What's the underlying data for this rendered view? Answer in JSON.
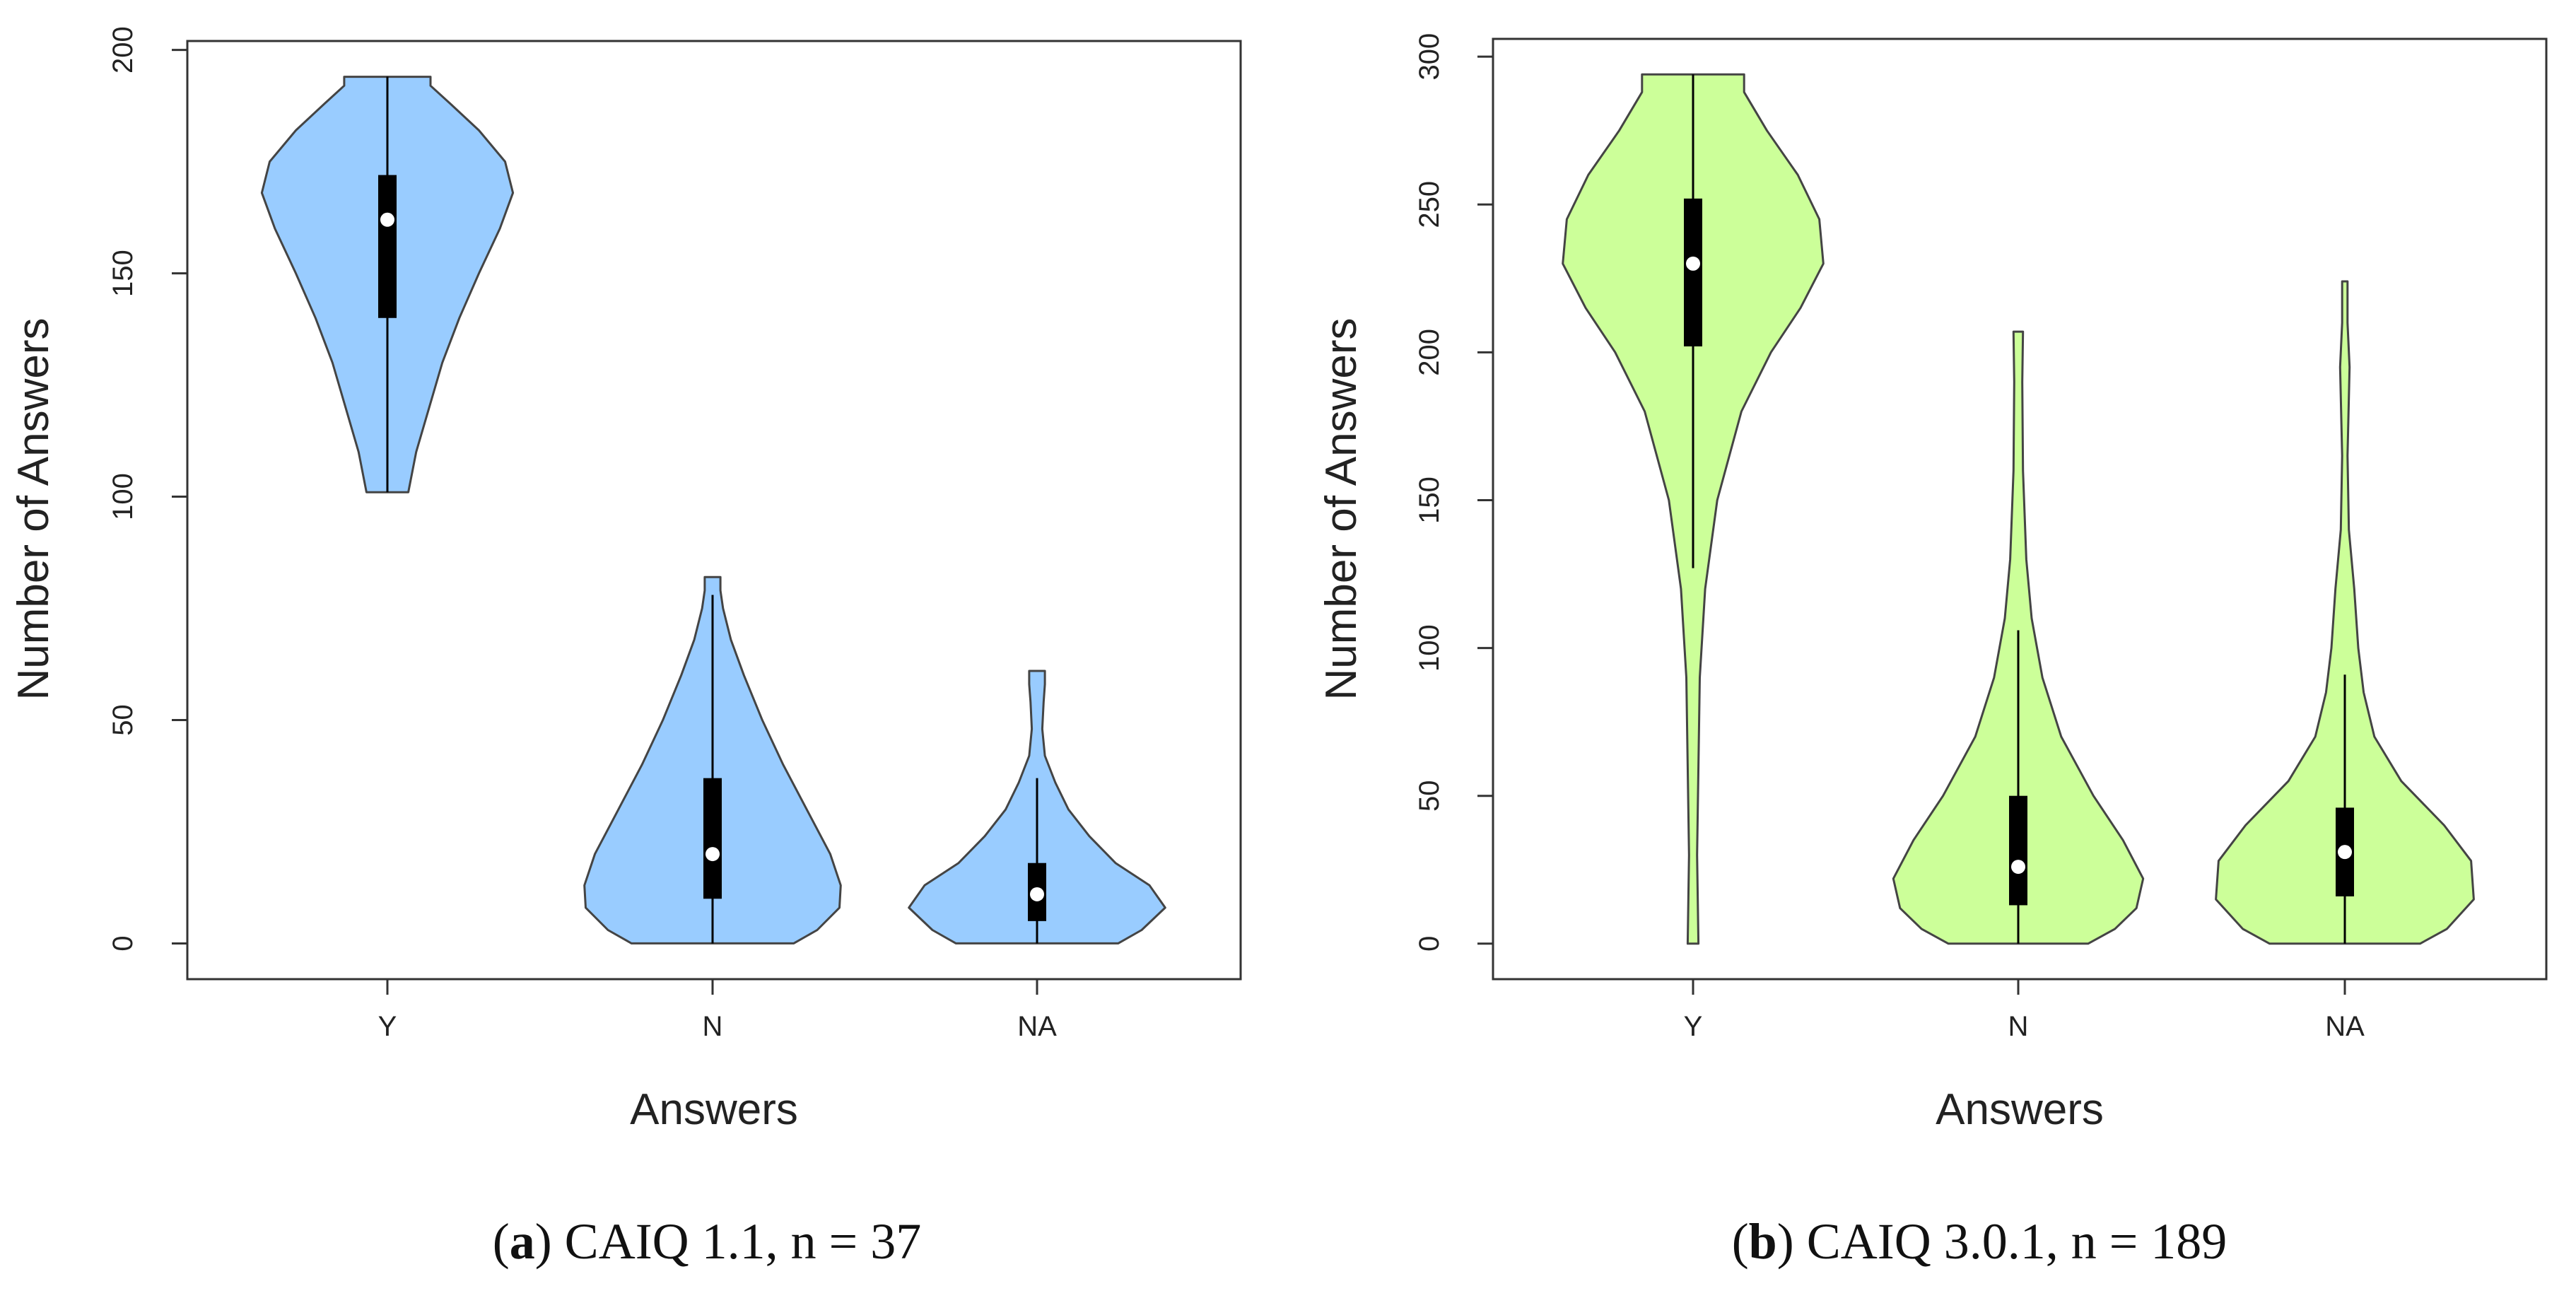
{
  "chart_data": [
    {
      "type": "violin",
      "panel_letter": "a",
      "caption_text": "CAIQ 1.1, n = 37",
      "fill_color": "#99ccff",
      "xlabel": "Answers",
      "ylabel": "Number of Answers",
      "ylim": [
        -8,
        202
      ],
      "yticks": [
        0,
        50,
        100,
        150,
        200
      ],
      "categories": [
        "Y",
        "N",
        "NA"
      ],
      "violins": [
        {
          "name": "Y",
          "min": 101,
          "q1": 140,
          "median": 162,
          "q3": 172,
          "whisker_low": 101,
          "whisker_high": 194,
          "max": 194,
          "profile": [
            [
              101,
              0.16
            ],
            [
              110,
              0.22
            ],
            [
              120,
              0.32
            ],
            [
              130,
              0.42
            ],
            [
              140,
              0.55
            ],
            [
              150,
              0.7
            ],
            [
              160,
              0.86
            ],
            [
              168,
              0.96
            ],
            [
              175,
              0.9
            ],
            [
              182,
              0.7
            ],
            [
              188,
              0.48
            ],
            [
              192,
              0.33
            ],
            [
              194,
              0.33
            ]
          ]
        },
        {
          "name": "N",
          "min": 0,
          "q1": 10,
          "median": 20,
          "q3": 37,
          "whisker_low": 0,
          "whisker_high": 78,
          "max": 82,
          "profile": [
            [
              0,
              0.62
            ],
            [
              3,
              0.8
            ],
            [
              8,
              0.97
            ],
            [
              13,
              0.98
            ],
            [
              20,
              0.9
            ],
            [
              30,
              0.72
            ],
            [
              40,
              0.54
            ],
            [
              50,
              0.38
            ],
            [
              60,
              0.24
            ],
            [
              68,
              0.14
            ],
            [
              75,
              0.08
            ],
            [
              79,
              0.06
            ],
            [
              82,
              0.06
            ]
          ]
        },
        {
          "name": "NA",
          "min": 0,
          "q1": 5,
          "median": 11,
          "q3": 18,
          "whisker_low": 0,
          "whisker_high": 37,
          "max": 61,
          "profile": [
            [
              0,
              0.62
            ],
            [
              3,
              0.8
            ],
            [
              8,
              0.98
            ],
            [
              13,
              0.86
            ],
            [
              18,
              0.6
            ],
            [
              24,
              0.4
            ],
            [
              30,
              0.24
            ],
            [
              36,
              0.14
            ],
            [
              42,
              0.06
            ],
            [
              48,
              0.04
            ],
            [
              54,
              0.05
            ],
            [
              58,
              0.06
            ],
            [
              61,
              0.06
            ]
          ]
        }
      ]
    },
    {
      "type": "violin",
      "panel_letter": "b",
      "caption_text": "CAIQ 3.0.1, n = 189",
      "fill_color": "#ccff99",
      "xlabel": "Answers",
      "ylabel": "Number of Answers",
      "ylim": [
        -12,
        306
      ],
      "yticks": [
        0,
        50,
        100,
        150,
        200,
        250,
        300
      ],
      "categories": [
        "Y",
        "N",
        "NA"
      ],
      "violins": [
        {
          "name": "Y",
          "min": 0,
          "q1": 202,
          "median": 230,
          "q3": 252,
          "whisker_low": 127,
          "whisker_high": 294,
          "max": 294,
          "profile": [
            [
              0,
              0.04
            ],
            [
              30,
              0.03
            ],
            [
              60,
              0.04
            ],
            [
              90,
              0.05
            ],
            [
              120,
              0.09
            ],
            [
              150,
              0.18
            ],
            [
              180,
              0.36
            ],
            [
              200,
              0.58
            ],
            [
              215,
              0.8
            ],
            [
              230,
              0.97
            ],
            [
              245,
              0.94
            ],
            [
              260,
              0.78
            ],
            [
              275,
              0.55
            ],
            [
              288,
              0.38
            ],
            [
              294,
              0.38
            ]
          ]
        },
        {
          "name": "N",
          "min": 0,
          "q1": 13,
          "median": 26,
          "q3": 50,
          "whisker_low": 0,
          "whisker_high": 106,
          "max": 207,
          "profile": [
            [
              0,
              0.52
            ],
            [
              5,
              0.72
            ],
            [
              12,
              0.88
            ],
            [
              22,
              0.93
            ],
            [
              35,
              0.78
            ],
            [
              50,
              0.56
            ],
            [
              70,
              0.32
            ],
            [
              90,
              0.18
            ],
            [
              110,
              0.1
            ],
            [
              130,
              0.06
            ],
            [
              160,
              0.035
            ],
            [
              190,
              0.03
            ],
            [
              207,
              0.035
            ]
          ]
        },
        {
          "name": "NA",
          "min": 0,
          "q1": 16,
          "median": 31,
          "q3": 46,
          "whisker_low": 0,
          "whisker_high": 91,
          "max": 224,
          "profile": [
            [
              0,
              0.56
            ],
            [
              5,
              0.76
            ],
            [
              15,
              0.96
            ],
            [
              28,
              0.94
            ],
            [
              40,
              0.74
            ],
            [
              55,
              0.42
            ],
            [
              70,
              0.22
            ],
            [
              85,
              0.14
            ],
            [
              100,
              0.1
            ],
            [
              120,
              0.07
            ],
            [
              140,
              0.03
            ],
            [
              165,
              0.02
            ],
            [
              195,
              0.035
            ],
            [
              210,
              0.02
            ],
            [
              224,
              0.02
            ]
          ]
        }
      ]
    }
  ]
}
